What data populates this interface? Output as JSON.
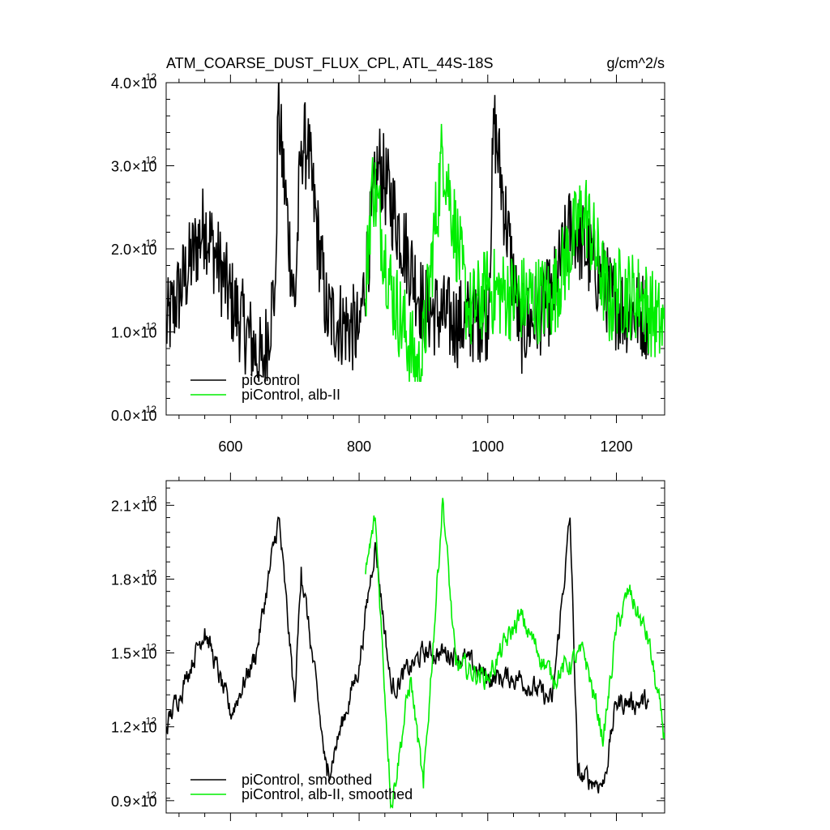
{
  "chart_data": [
    {
      "type": "line",
      "title": "ATM_COARSE_DUST_FLUX_CPL, ATL_44S-18S",
      "units": "g/cm^2/s",
      "xlim": [
        500,
        1275
      ],
      "ylim": [
        0.0,
        4.0
      ],
      "y_exponent": "-12",
      "y_ticks": [
        {
          "mant": "0.0"
        },
        {
          "mant": "1.0"
        },
        {
          "mant": "2.0"
        },
        {
          "mant": "3.0"
        },
        {
          "mant": "4.0"
        }
      ],
      "x_ticks": [
        {
          "value": 600,
          "label": "600"
        },
        {
          "value": 800,
          "label": "800"
        },
        {
          "value": 1000,
          "label": "1000"
        },
        {
          "value": 1200,
          "label": "1200"
        }
      ],
      "series": [
        {
          "name": "piControl",
          "color": "#000000",
          "x_start": 500,
          "x_end": 1250,
          "sample_x": [
            500,
            560,
            600,
            650,
            670,
            674,
            700,
            710,
            720,
            750,
            800,
            830,
            900,
            950,
            1000,
            1010,
            1050,
            1100,
            1130,
            1200,
            1250
          ],
          "sample_y": [
            1.05,
            2.3,
            1.4,
            0.6,
            1.6,
            3.68,
            1.3,
            3.3,
            3.2,
            1.2,
            1.0,
            3.05,
            1.3,
            1.1,
            1.2,
            3.5,
            1.0,
            1.4,
            2.3,
            1.3,
            1.2
          ]
        },
        {
          "name": "piControl, alb-II",
          "color": "#00ee00",
          "x_start": 810,
          "x_end": 1275,
          "sample_x": [
            810,
            820,
            850,
            895,
            930,
            970,
            1000,
            1050,
            1100,
            1150,
            1190,
            1200,
            1240,
            1275
          ],
          "sample_y": [
            1.4,
            2.9,
            1.5,
            0.45,
            3.2,
            1.2,
            1.5,
            1.4,
            1.4,
            2.5,
            1.3,
            1.5,
            1.4,
            1.0
          ]
        }
      ],
      "legend": "bottom-left",
      "grid": false
    },
    {
      "type": "line",
      "xlim": [
        500,
        1275
      ],
      "ylim": [
        0.85,
        2.2
      ],
      "y_exponent": "-12",
      "y_ticks": [
        {
          "value": 0.9,
          "mant": "0.9"
        },
        {
          "value": 1.2,
          "mant": "1.2"
        },
        {
          "value": 1.5,
          "mant": "1.5"
        },
        {
          "value": 1.8,
          "mant": "1.8"
        },
        {
          "value": 2.1,
          "mant": "2.1"
        }
      ],
      "x_ticks": [
        {
          "value": 600
        },
        {
          "value": 800
        },
        {
          "value": 1000
        },
        {
          "value": 1200
        }
      ],
      "series": [
        {
          "name": "piControl, smoothed",
          "color": "#000000",
          "x_start": 500,
          "x_end": 1250,
          "sample_x": [
            500,
            530,
            560,
            600,
            640,
            675,
            700,
            710,
            750,
            800,
            825,
            850,
            900,
            950,
            1000,
            1050,
            1100,
            1128,
            1140,
            1180,
            1200,
            1250
          ],
          "sample_y": [
            1.2,
            1.4,
            1.6,
            1.25,
            1.5,
            2.05,
            1.3,
            1.85,
            1.0,
            1.45,
            1.95,
            1.35,
            1.5,
            1.5,
            1.4,
            1.4,
            1.3,
            2.05,
            1.0,
            0.97,
            1.3,
            1.3
          ]
        },
        {
          "name": "piControl, alb-II, smoothed",
          "color": "#00ee00",
          "x_start": 810,
          "x_end": 1275,
          "sample_x": [
            810,
            825,
            850,
            880,
            900,
            930,
            950,
            1000,
            1050,
            1100,
            1150,
            1180,
            1200,
            1220,
            1250,
            1275
          ],
          "sample_y": [
            1.82,
            2.05,
            0.88,
            1.4,
            0.95,
            2.13,
            1.45,
            1.4,
            1.65,
            1.4,
            1.5,
            1.15,
            1.6,
            1.75,
            1.55,
            1.15
          ]
        }
      ],
      "legend": "bottom-left",
      "grid": false
    }
  ]
}
